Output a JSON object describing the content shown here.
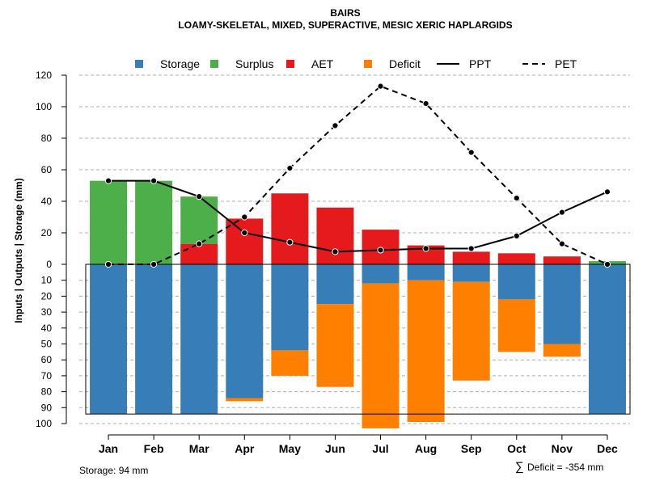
{
  "chart_data": {
    "type": "bar",
    "title": "BAIRS",
    "subtitle": "LOAMY-SKELETAL, MIXED, SUPERACTIVE, MESIC XERIC HAPLARGIDS",
    "ylabel": "Inputs | Outputs | Storage    (mm)",
    "categories": [
      "Jan",
      "Feb",
      "Mar",
      "Apr",
      "May",
      "Jun",
      "Jul",
      "Aug",
      "Sep",
      "Oct",
      "Nov",
      "Dec"
    ],
    "upper_ylim": [
      0,
      120
    ],
    "upper_ticks": [
      "0",
      "20",
      "40",
      "60",
      "80",
      "100",
      "120"
    ],
    "lower_ylim": [
      0,
      100
    ],
    "lower_ticks": [
      "10",
      "20",
      "30",
      "40",
      "50",
      "60",
      "70",
      "80",
      "90",
      "100"
    ],
    "legend": [
      {
        "label": "Storage",
        "kind": "box",
        "color": "#377eb8"
      },
      {
        "label": "Surplus",
        "kind": "box",
        "color": "#4daf4a"
      },
      {
        "label": "AET",
        "kind": "box",
        "color": "#e41a1c"
      },
      {
        "label": "Deficit",
        "kind": "box",
        "color": "#ff7f00"
      },
      {
        "label": "PPT",
        "kind": "solid",
        "color": "#000000"
      },
      {
        "label": "PET",
        "kind": "dashed",
        "color": "#000000"
      }
    ],
    "series": [
      {
        "name": "Surplus",
        "color": "#4daf4a",
        "values": [
          53,
          53,
          30,
          0,
          0,
          0,
          0,
          0,
          0,
          0,
          0,
          2
        ]
      },
      {
        "name": "AET",
        "color": "#e41a1c",
        "values": [
          0,
          0,
          13,
          29,
          45,
          36,
          22,
          12,
          8,
          7,
          5,
          0
        ]
      },
      {
        "name": "Storage",
        "color": "#377eb8",
        "values": [
          94,
          94,
          94,
          84,
          54,
          25,
          12,
          10,
          11,
          22,
          50,
          94
        ]
      },
      {
        "name": "Deficit",
        "color": "#ff7f00",
        "values": [
          0,
          0,
          0,
          2,
          16,
          52,
          91,
          89,
          62,
          33,
          8,
          0
        ]
      },
      {
        "name": "PPT",
        "color": "#000000",
        "values": [
          53,
          53,
          43,
          20,
          14,
          8,
          9,
          10,
          10,
          18,
          33,
          46
        ]
      },
      {
        "name": "PET",
        "color": "#000000",
        "values": [
          0,
          0,
          13,
          30,
          61,
          88,
          113,
          102,
          71,
          42,
          13,
          0
        ]
      }
    ],
    "storage_capacity": 94,
    "storage_note": "Storage: 94 mm",
    "deficit_note": "Deficit = -354 mm",
    "sum_symbol": "∑"
  }
}
